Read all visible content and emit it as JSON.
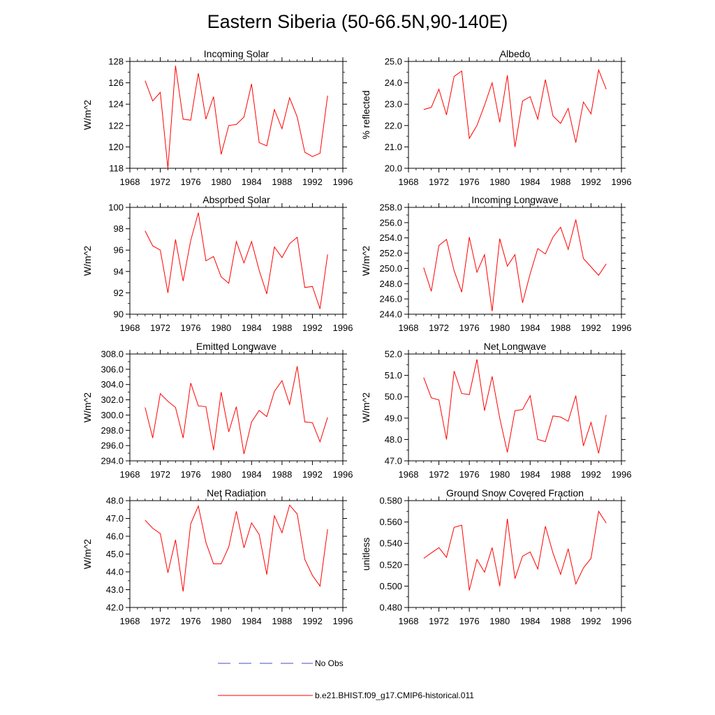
{
  "figure": {
    "title": "Eastern Siberia (50-66.5N,90-140E)"
  },
  "legend": {
    "items": [
      {
        "label": "No Obs",
        "color": "#4a4ac8",
        "dashed": true
      },
      {
        "label": "b.e21.BHIST.f09_g17.CMIP6-historical.011",
        "color": "#ff0000",
        "dashed": false
      }
    ]
  },
  "chart_data": [
    {
      "type": "line",
      "title": "Incoming Solar",
      "ylabel": "W/m^2",
      "xlim": [
        1968,
        1996
      ],
      "xticks": [
        1968,
        1972,
        1976,
        1980,
        1984,
        1988,
        1992,
        1996
      ],
      "ylim": [
        118,
        128
      ],
      "yticks": [
        "118",
        "120",
        "122",
        "124",
        "126",
        "128"
      ],
      "x": [
        1970,
        1971,
        1972,
        1973,
        1974,
        1975,
        1976,
        1977,
        1978,
        1979,
        1980,
        1981,
        1982,
        1983,
        1984,
        1985,
        1986,
        1987,
        1988,
        1989,
        1990,
        1991,
        1992,
        1993,
        1994
      ],
      "series": [
        {
          "name": "b.e21.BHIST.f09_g17.CMIP6-historical.011",
          "color": "#ff0000",
          "values": [
            126.2,
            124.3,
            125.1,
            118.0,
            127.6,
            122.6,
            122.5,
            126.9,
            122.6,
            124.7,
            119.3,
            122.0,
            122.1,
            122.8,
            125.9,
            120.4,
            120.1,
            123.5,
            121.7,
            124.6,
            122.8,
            119.5,
            119.1,
            119.4,
            124.8
          ]
        }
      ]
    },
    {
      "type": "line",
      "title": "Albedo",
      "ylabel": "% reflected",
      "xlim": [
        1968,
        1996
      ],
      "xticks": [
        1968,
        1972,
        1976,
        1980,
        1984,
        1988,
        1992,
        1996
      ],
      "ylim": [
        20,
        25
      ],
      "yticks": [
        "20.0",
        "21.0",
        "22.0",
        "23.0",
        "24.0",
        "25.0"
      ],
      "x": [
        1970,
        1971,
        1972,
        1973,
        1974,
        1975,
        1976,
        1977,
        1978,
        1979,
        1980,
        1981,
        1982,
        1983,
        1984,
        1985,
        1986,
        1987,
        1988,
        1989,
        1990,
        1991,
        1992,
        1993,
        1994
      ],
      "series": [
        {
          "name": "b.e21.BHIST.f09_g17.CMIP6-historical.011",
          "color": "#ff0000",
          "values": [
            22.75,
            22.85,
            23.7,
            22.5,
            24.3,
            24.55,
            21.4,
            22.0,
            22.95,
            24.0,
            22.15,
            24.35,
            21.0,
            23.15,
            23.35,
            22.3,
            24.15,
            22.45,
            22.1,
            22.8,
            21.2,
            23.1,
            22.55,
            24.6,
            23.7
          ]
        }
      ]
    },
    {
      "type": "line",
      "title": "Absorbed Solar",
      "ylabel": "W/m^2",
      "xlim": [
        1968,
        1996
      ],
      "xticks": [
        1968,
        1972,
        1976,
        1980,
        1984,
        1988,
        1992,
        1996
      ],
      "ylim": [
        90,
        100
      ],
      "yticks": [
        "90",
        "92",
        "94",
        "96",
        "98",
        "100"
      ],
      "x": [
        1970,
        1971,
        1972,
        1973,
        1974,
        1975,
        1976,
        1977,
        1978,
        1979,
        1980,
        1981,
        1982,
        1983,
        1984,
        1985,
        1986,
        1987,
        1988,
        1989,
        1990,
        1991,
        1992,
        1993,
        1994
      ],
      "series": [
        {
          "name": "b.e21.BHIST.f09_g17.CMIP6-historical.011",
          "color": "#ff0000",
          "values": [
            97.8,
            96.4,
            96.0,
            92.0,
            97.0,
            93.1,
            96.9,
            99.5,
            95.0,
            95.4,
            93.5,
            92.9,
            96.8,
            94.8,
            96.8,
            94.1,
            91.9,
            96.3,
            95.3,
            96.6,
            97.2,
            92.5,
            92.6,
            90.5,
            95.6
          ]
        }
      ]
    },
    {
      "type": "line",
      "title": "Incoming Longwave",
      "ylabel": "W/m^2",
      "xlim": [
        1968,
        1996
      ],
      "xticks": [
        1968,
        1972,
        1976,
        1980,
        1984,
        1988,
        1992,
        1996
      ],
      "ylim": [
        244,
        258
      ],
      "yticks": [
        "244.0",
        "246.0",
        "248.0",
        "250.0",
        "252.0",
        "254.0",
        "256.0",
        "258.0"
      ],
      "x": [
        1970,
        1971,
        1972,
        1973,
        1974,
        1975,
        1976,
        1977,
        1978,
        1979,
        1980,
        1981,
        1982,
        1983,
        1984,
        1985,
        1986,
        1987,
        1988,
        1989,
        1990,
        1991,
        1992,
        1993,
        1994
      ],
      "series": [
        {
          "name": "b.e21.BHIST.f09_g17.CMIP6-historical.011",
          "color": "#ff0000",
          "values": [
            250.1,
            247.0,
            253.0,
            253.8,
            249.7,
            246.9,
            254.1,
            249.5,
            251.8,
            244.4,
            253.9,
            250.3,
            251.8,
            245.5,
            249.3,
            252.6,
            251.9,
            254.1,
            255.4,
            252.5,
            256.4,
            251.3,
            250.2,
            249.1,
            250.6
          ]
        }
      ]
    },
    {
      "type": "line",
      "title": "Emitted Longwave",
      "ylabel": "W/m^2",
      "xlim": [
        1968,
        1996
      ],
      "xticks": [
        1968,
        1972,
        1976,
        1980,
        1984,
        1988,
        1992,
        1996
      ],
      "ylim": [
        294,
        308
      ],
      "yticks": [
        "294.0",
        "296.0",
        "298.0",
        "300.0",
        "302.0",
        "304.0",
        "306.0",
        "308.0"
      ],
      "x": [
        1970,
        1971,
        1972,
        1973,
        1974,
        1975,
        1976,
        1977,
        1978,
        1979,
        1980,
        1981,
        1982,
        1983,
        1984,
        1985,
        1986,
        1987,
        1988,
        1989,
        1990,
        1991,
        1992,
        1993,
        1994
      ],
      "series": [
        {
          "name": "b.e21.BHIST.f09_g17.CMIP6-historical.011",
          "color": "#ff0000",
          "values": [
            301.0,
            297.0,
            302.8,
            301.8,
            301.0,
            297.0,
            304.2,
            301.2,
            301.1,
            295.4,
            303.0,
            297.8,
            301.1,
            294.9,
            299.1,
            300.6,
            299.8,
            303.1,
            304.5,
            301.4,
            306.4,
            299.1,
            299.0,
            296.5,
            299.7
          ]
        }
      ]
    },
    {
      "type": "line",
      "title": "Net Longwave",
      "ylabel": "W/m^2",
      "xlim": [
        1968,
        1996
      ],
      "xticks": [
        1968,
        1972,
        1976,
        1980,
        1984,
        1988,
        1992,
        1996
      ],
      "ylim": [
        47,
        52
      ],
      "yticks": [
        "47.0",
        "48.0",
        "49.0",
        "50.0",
        "51.0",
        "52.0"
      ],
      "x": [
        1970,
        1971,
        1972,
        1973,
        1974,
        1975,
        1976,
        1977,
        1978,
        1979,
        1980,
        1981,
        1982,
        1983,
        1984,
        1985,
        1986,
        1987,
        1988,
        1989,
        1990,
        1991,
        1992,
        1993,
        1994
      ],
      "series": [
        {
          "name": "b.e21.BHIST.f09_g17.CMIP6-historical.011",
          "color": "#ff0000",
          "values": [
            50.9,
            49.95,
            49.85,
            48.0,
            51.2,
            50.15,
            50.1,
            51.75,
            49.35,
            50.95,
            49.0,
            47.4,
            49.35,
            49.4,
            50.05,
            48.0,
            47.9,
            49.1,
            49.05,
            48.85,
            50.05,
            47.7,
            48.8,
            47.35,
            49.15
          ]
        }
      ]
    },
    {
      "type": "line",
      "title": "Net Radiation",
      "ylabel": "W/m^2",
      "xlim": [
        1968,
        1996
      ],
      "xticks": [
        1968,
        1972,
        1976,
        1980,
        1984,
        1988,
        1992,
        1996
      ],
      "ylim": [
        42,
        48
      ],
      "yticks": [
        "42.0",
        "43.0",
        "44.0",
        "45.0",
        "46.0",
        "47.0",
        "48.0"
      ],
      "x": [
        1970,
        1971,
        1972,
        1973,
        1974,
        1975,
        1976,
        1977,
        1978,
        1979,
        1980,
        1981,
        1982,
        1983,
        1984,
        1985,
        1986,
        1987,
        1988,
        1989,
        1990,
        1991,
        1992,
        1993,
        1994
      ],
      "series": [
        {
          "name": "b.e21.BHIST.f09_g17.CMIP6-historical.011",
          "color": "#ff0000",
          "values": [
            46.9,
            46.45,
            46.15,
            43.95,
            45.8,
            42.9,
            46.7,
            47.7,
            45.65,
            44.45,
            44.45,
            45.4,
            47.4,
            45.35,
            46.75,
            46.1,
            43.85,
            47.15,
            46.2,
            47.75,
            47.25,
            44.7,
            43.8,
            43.2,
            46.4
          ]
        }
      ]
    },
    {
      "type": "line",
      "title": "Ground Snow Covered Fraction",
      "ylabel": "unitless",
      "xlim": [
        1968,
        1996
      ],
      "xticks": [
        1968,
        1972,
        1976,
        1980,
        1984,
        1988,
        1992,
        1996
      ],
      "ylim": [
        0.48,
        0.58
      ],
      "yticks": [
        "0.480",
        "0.500",
        "0.520",
        "0.540",
        "0.560",
        "0.580"
      ],
      "x": [
        1970,
        1971,
        1972,
        1973,
        1974,
        1975,
        1976,
        1977,
        1978,
        1979,
        1980,
        1981,
        1982,
        1983,
        1984,
        1985,
        1986,
        1987,
        1988,
        1989,
        1990,
        1991,
        1992,
        1993,
        1994
      ],
      "series": [
        {
          "name": "b.e21.BHIST.f09_g17.CMIP6-historical.011",
          "color": "#ff0000",
          "values": [
            0.526,
            0.531,
            0.536,
            0.527,
            0.555,
            0.557,
            0.496,
            0.525,
            0.513,
            0.536,
            0.5,
            0.563,
            0.507,
            0.528,
            0.532,
            0.516,
            0.556,
            0.531,
            0.511,
            0.535,
            0.502,
            0.517,
            0.526,
            0.57,
            0.559
          ]
        }
      ]
    }
  ]
}
